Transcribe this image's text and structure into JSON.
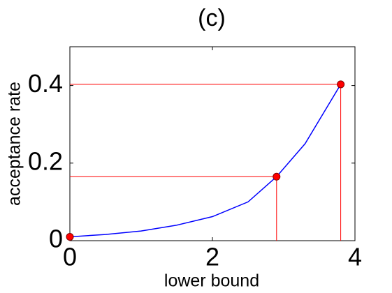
{
  "chart_data": {
    "type": "line",
    "title": "(c)",
    "x_label": "lower bound",
    "y_label": "acceptance rate",
    "xlim": [
      0,
      4
    ],
    "ylim": [
      0,
      0.5
    ],
    "xticks": [
      0,
      2,
      4
    ],
    "yticks": [
      0,
      0.2,
      0.4
    ],
    "series": [
      {
        "color": "#0000ff",
        "x": [
          0,
          0.5,
          1,
          1.5,
          2,
          2.5,
          2.9,
          3.3,
          3.8
        ],
        "values": [
          0.01,
          0.016,
          0.025,
          0.04,
          0.062,
          0.1,
          0.165,
          0.25,
          0.403
        ]
      }
    ],
    "markers": {
      "color": "#ff0000",
      "x": [
        0,
        2.9,
        3.8
      ],
      "values": [
        0.01,
        0.165,
        0.403
      ]
    }
  }
}
